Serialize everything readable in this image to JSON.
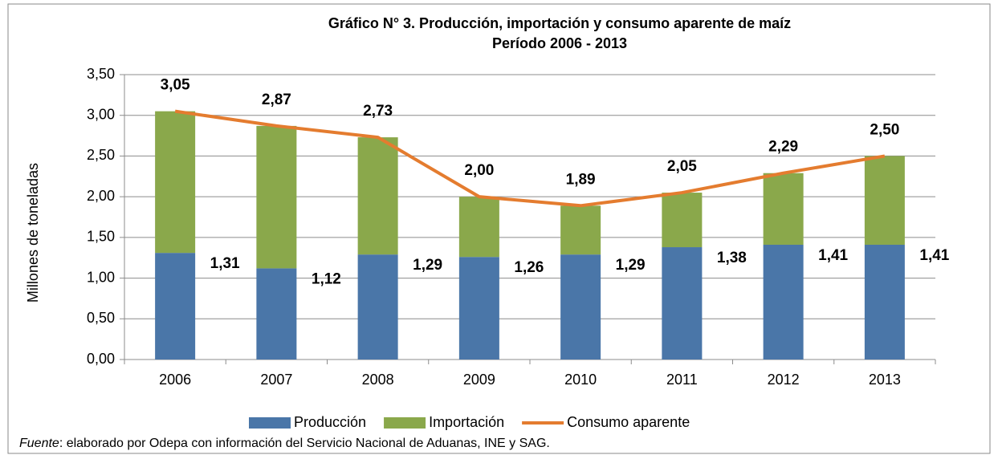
{
  "chart_data": {
    "type": "bar",
    "stacked": true,
    "title": "Gráfico N° 3. Producción, importación y consumo aparente de maíz",
    "subtitle": "Período 2006 - 2013",
    "y_label": "Millones de toneladas",
    "categories": [
      "2006",
      "2007",
      "2008",
      "2009",
      "2010",
      "2011",
      "2012",
      "2013"
    ],
    "series": [
      {
        "name": "Producción",
        "type": "bar",
        "color": "#4a76a8",
        "values": [
          1.31,
          1.12,
          1.29,
          1.26,
          1.29,
          1.38,
          1.41,
          1.41
        ],
        "value_labels": [
          "1,31",
          "1,12",
          "1,29",
          "1,26",
          "1,29",
          "1,38",
          "1,41",
          "1,41"
        ]
      },
      {
        "name": "Importación",
        "type": "bar",
        "color": "#8aa84b",
        "values": [
          1.74,
          1.75,
          1.44,
          0.74,
          0.6,
          0.67,
          0.88,
          1.09
        ]
      },
      {
        "name": "Consumo aparente",
        "type": "line",
        "color": "#e47c2f",
        "values": [
          3.05,
          2.87,
          2.73,
          2.0,
          1.89,
          2.05,
          2.29,
          2.5
        ],
        "value_labels": [
          "3,05",
          "2,87",
          "2,73",
          "2,00",
          "1,89",
          "2,05",
          "2,29",
          "2,50"
        ]
      }
    ],
    "ylim": [
      0,
      3.5
    ],
    "yticks": [
      {
        "value": 0,
        "label": "0,00"
      },
      {
        "value": 0.5,
        "label": "0,50"
      },
      {
        "value": 1,
        "label": "1,00"
      },
      {
        "value": 1.5,
        "label": "1,50"
      },
      {
        "value": 2,
        "label": "2,00"
      },
      {
        "value": 2.5,
        "label": "2,50"
      },
      {
        "value": 3,
        "label": "3,00"
      },
      {
        "value": 3.5,
        "label": "3,50"
      }
    ],
    "grid": true,
    "legend": "bottom",
    "source": {
      "label": "Fuente",
      "text": ": elaborado por Odepa con información del Servicio Nacional de Aduanas, INE y SAG."
    }
  }
}
